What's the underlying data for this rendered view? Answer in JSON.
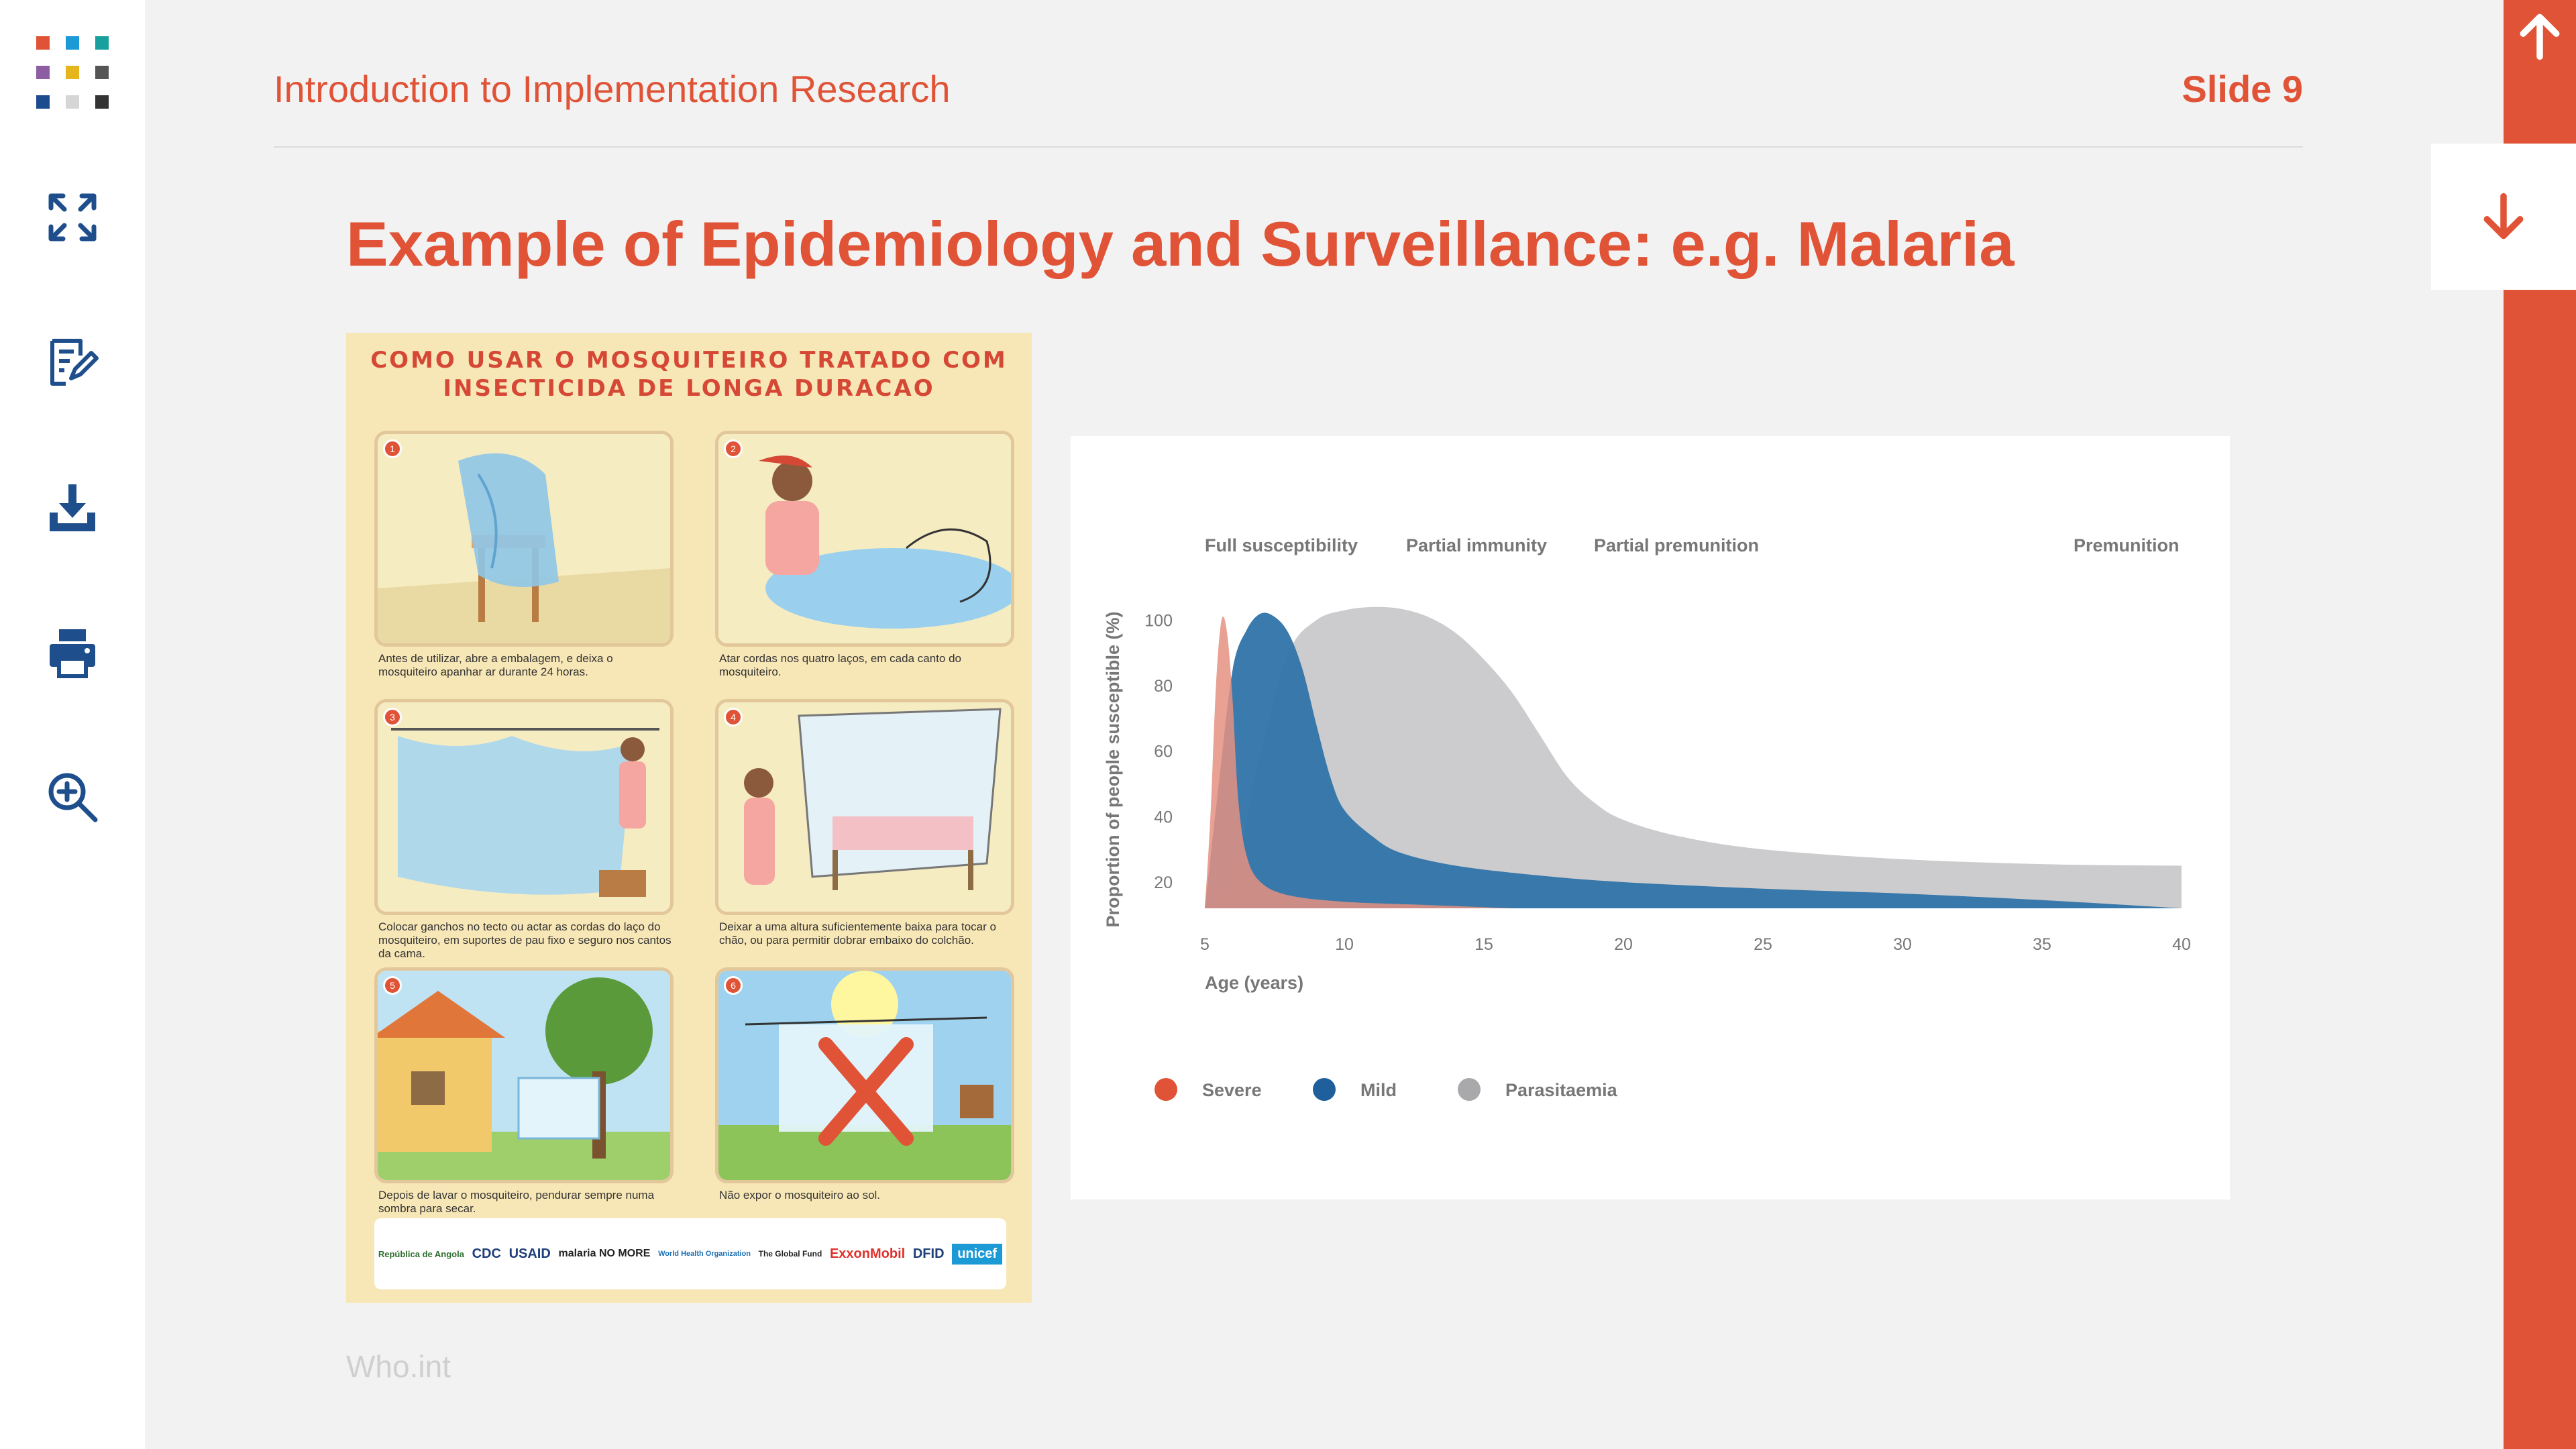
{
  "header": {
    "title": "Introduction to Implementation Research",
    "slide_label": "Slide 9"
  },
  "slide": {
    "title": "Example of Epidemiology and Surveillance: e.g. Malaria",
    "source": "Who.int"
  },
  "sidebar": {
    "buttons": [
      {
        "name": "expand",
        "icon": "expand-arrows-icon"
      },
      {
        "name": "notes",
        "icon": "edit-notes-icon"
      },
      {
        "name": "download",
        "icon": "download-icon"
      },
      {
        "name": "print",
        "icon": "printer-icon"
      },
      {
        "name": "zoom",
        "icon": "zoom-in-icon"
      }
    ],
    "logo_colors": [
      "#e05336",
      "#1b9ad6",
      "#1a9f9f",
      "#8d5ea3",
      "#e6b41b",
      "#555555",
      "#1d4b8f",
      "#d6d6d6",
      "#333333"
    ]
  },
  "nav": {
    "up_icon": "arrow-up-icon",
    "down_icon": "arrow-down-icon"
  },
  "poster": {
    "title_line1": "COMO USAR O MOSQUITEIRO TRATADO COM",
    "title_line2": "INSECTICIDA DE LONGA DURACAO",
    "captions": [
      "Antes de utilizar, abre a embalagem, e deixa o mosquiteiro apanhar ar durante 24 horas.",
      "Atar cordas nos quatro laços, em cada canto do mosquiteiro.",
      "Colocar ganchos no tecto ou actar as cordas do laço do mosquiteiro, em suportes de pau fixo e seguro nos cantos da cama.",
      "Deixar a uma altura suficientemente baixa para tocar o chão, ou para permitir dobrar embaixo do colchão.",
      "Depois de lavar o mosquiteiro, pendurar sempre numa sombra para secar.",
      "Não expor o mosquiteiro ao sol."
    ],
    "logos": [
      "República de Angola",
      "CDC",
      "USAID",
      "malaria NO MORE",
      "World Health Organization",
      "The Global Fund",
      "ExxonMobil",
      "DFID",
      "unicef"
    ]
  },
  "chart_data": {
    "type": "area",
    "stages": [
      "Full susceptibility",
      "Partial immunity",
      "Partial premunition",
      "Premunition"
    ],
    "xlabel": "Age (years)",
    "ylabel": "Proportion of people susceptible (%)",
    "x_ticks": [
      5,
      10,
      15,
      20,
      25,
      30,
      35,
      40
    ],
    "y_ticks": [
      20,
      40,
      60,
      80,
      100
    ],
    "xlim": [
      5,
      40
    ],
    "ylim": [
      12,
      105
    ],
    "legend_position": "bottom-left",
    "series": [
      {
        "name": "Parasitaemia",
        "color": "#c9c9cb",
        "points": [
          [
            5,
            12
          ],
          [
            6,
            20
          ],
          [
            7,
            60
          ],
          [
            8,
            90
          ],
          [
            9,
            100
          ],
          [
            10,
            103
          ],
          [
            11,
            104
          ],
          [
            12,
            103.5
          ],
          [
            13,
            101
          ],
          [
            14,
            96
          ],
          [
            15,
            88
          ],
          [
            16,
            78
          ],
          [
            17,
            65
          ],
          [
            18,
            52
          ],
          [
            19,
            44
          ],
          [
            20,
            39
          ],
          [
            22,
            34
          ],
          [
            25,
            30
          ],
          [
            30,
            27
          ],
          [
            35,
            25.5
          ],
          [
            40,
            25
          ]
        ]
      },
      {
        "name": "Mild",
        "color": "#2f73a8",
        "points": [
          [
            5,
            12
          ],
          [
            5.5,
            50
          ],
          [
            6,
            85
          ],
          [
            6.5,
            97
          ],
          [
            7,
            102
          ],
          [
            7.5,
            101
          ],
          [
            8,
            96
          ],
          [
            8.5,
            85
          ],
          [
            9,
            68
          ],
          [
            9.5,
            52
          ],
          [
            10,
            42
          ],
          [
            11,
            34
          ],
          [
            12,
            29
          ],
          [
            14,
            25
          ],
          [
            17,
            22
          ],
          [
            20,
            20
          ],
          [
            25,
            18
          ],
          [
            30,
            16.5
          ],
          [
            35,
            14.5
          ],
          [
            40,
            12
          ]
        ]
      },
      {
        "name": "Severe",
        "color": "#e59080",
        "points": [
          [
            5,
            12
          ],
          [
            5.2,
            40
          ],
          [
            5.4,
            80
          ],
          [
            5.6,
            100
          ],
          [
            5.8,
            96
          ],
          [
            6,
            75
          ],
          [
            6.2,
            45
          ],
          [
            6.5,
            28
          ],
          [
            7,
            20
          ],
          [
            8,
            16
          ],
          [
            10,
            14
          ],
          [
            13,
            13
          ],
          [
            16,
            12
          ]
        ]
      }
    ]
  }
}
